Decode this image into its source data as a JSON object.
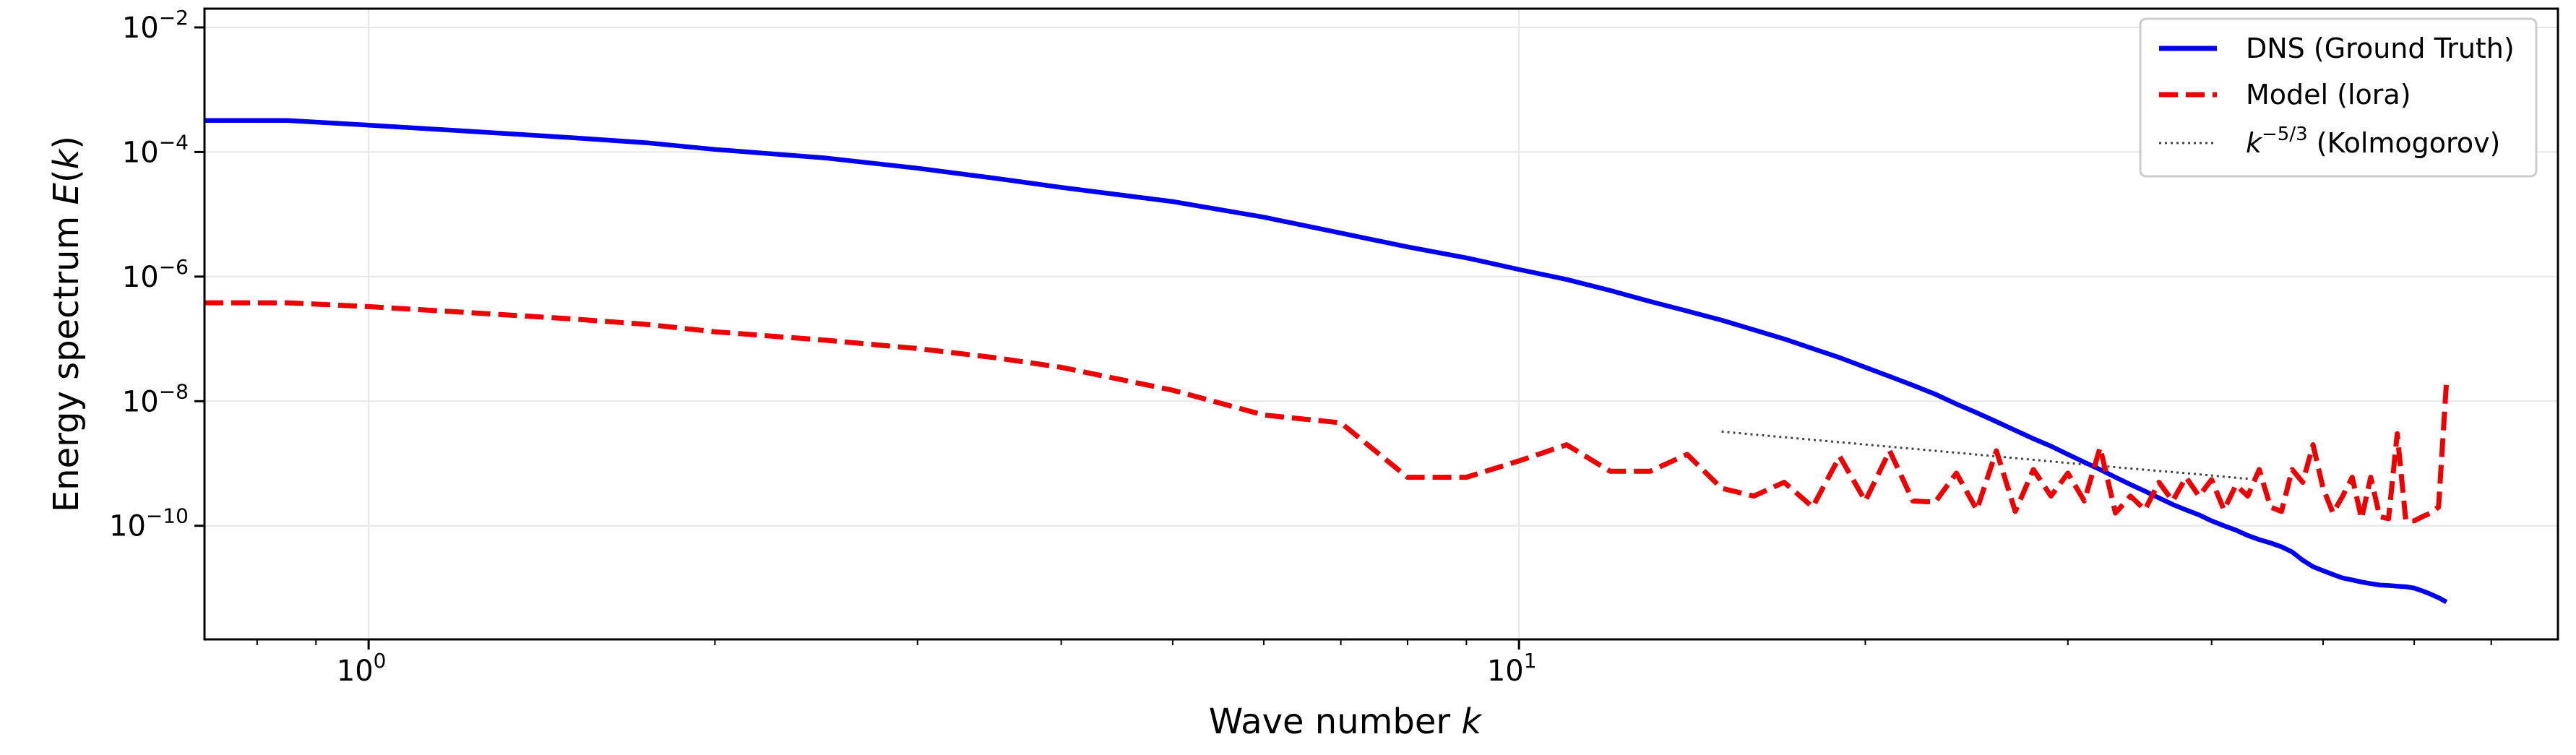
{
  "chart_data": {
    "type": "line",
    "title": "",
    "xlabel": "Wave number k",
    "ylabel": "Energy spectrum E(k)",
    "xscale": "log",
    "yscale": "log",
    "xlim": [
      0.72,
      80
    ],
    "ylim": [
      1.5e-12,
      0.02
    ],
    "grid": true,
    "legend_position": "top-right",
    "x_ticks": [
      {
        "value": 1,
        "label": "10",
        "exp": "0"
      },
      {
        "value": 10,
        "label": "10",
        "exp": "1"
      }
    ],
    "y_ticks": [
      {
        "value": 0.01,
        "label": "10",
        "exp": "−2"
      },
      {
        "value": 0.0001,
        "label": "10",
        "exp": "−4"
      },
      {
        "value": 1e-06,
        "label": "10",
        "exp": "−6"
      },
      {
        "value": 1e-08,
        "label": "10",
        "exp": "−8"
      },
      {
        "value": 1e-10,
        "label": "10",
        "exp": "−10"
      }
    ],
    "series": [
      {
        "name": "DNS (Ground Truth)",
        "color": "#0000ee",
        "style": "solid",
        "x": [
          0.72,
          0.85,
          1.0,
          1.2,
          1.5,
          1.75,
          2.0,
          2.5,
          3.0,
          3.5,
          4.0,
          5.0,
          6.0,
          7.0,
          8.0,
          9.0,
          10.0,
          11.0,
          12.0,
          13.0,
          14.0,
          15.0,
          16.0,
          17.0,
          18.0,
          19.0,
          20.0,
          21.0,
          22.0,
          23.0,
          24.0,
          25.0,
          26.0,
          27.0,
          28.0,
          29.0,
          30.0,
          31.0,
          32.0,
          33.0,
          34.0,
          35.0,
          36.0,
          37.0,
          38.0,
          39.0,
          40.0,
          41.0,
          42.0,
          43.0,
          44.0,
          45.0,
          46.0,
          47.0,
          48.0,
          49.0,
          50.0,
          51.0,
          52.0,
          53.0,
          54.0,
          55.0,
          56.0,
          57.0,
          58.0,
          59.0,
          60.0,
          61.0,
          62.0,
          63.0,
          64.0
        ],
        "y": [
          0.00032,
          0.00032,
          0.00027,
          0.00022,
          0.00017,
          0.00014,
          0.00011,
          8e-05,
          5.5e-05,
          3.8e-05,
          2.7e-05,
          1.6e-05,
          9e-06,
          5e-06,
          3e-06,
          2e-06,
          1.3e-06,
          9e-07,
          6e-07,
          4e-07,
          2.8e-07,
          2e-07,
          1.4e-07,
          1e-07,
          7e-08,
          5e-08,
          3.5e-08,
          2.5e-08,
          1.8e-08,
          1.3e-08,
          9e-09,
          6.5e-09,
          4.7e-09,
          3.4e-09,
          2.5e-09,
          1.9e-09,
          1.4e-09,
          1.05e-09,
          8e-10,
          6e-10,
          4.6e-10,
          3.6e-10,
          2.8e-10,
          2.2e-10,
          1.8e-10,
          1.5e-10,
          1.2e-10,
          1e-10,
          8.5e-11,
          7e-11,
          6e-11,
          5.3e-11,
          4.6e-11,
          3.8e-11,
          2.8e-11,
          2.2e-11,
          1.9e-11,
          1.65e-11,
          1.45e-11,
          1.35e-11,
          1.25e-11,
          1.18e-11,
          1.12e-11,
          1.1e-11,
          1.07e-11,
          1.05e-11,
          1e-11,
          9e-12,
          8e-12,
          7e-12,
          6e-12
        ]
      },
      {
        "name": "Model (lora)",
        "color": "#ee0000",
        "style": "dashed",
        "x": [
          0.72,
          0.85,
          1.0,
          1.2,
          1.5,
          1.75,
          2.0,
          2.5,
          3.0,
          3.5,
          4.0,
          5.0,
          6.0,
          7.0,
          8.0,
          9.0,
          10.0,
          11.0,
          12.0,
          13.0,
          14.0,
          15.0,
          16.0,
          17.0,
          18.0,
          19.0,
          20.0,
          21.0,
          22.0,
          23.0,
          24.0,
          25.0,
          26.0,
          27.0,
          28.0,
          29.0,
          30.0,
          31.0,
          32.0,
          33.0,
          34.0,
          35.0,
          36.0,
          37.0,
          38.0,
          39.0,
          40.0,
          41.0,
          42.0,
          43.0,
          44.0,
          45.0,
          46.0,
          47.0,
          48.0,
          49.0,
          50.0,
          51.0,
          52.0,
          53.0,
          54.0,
          55.0,
          56.0,
          57.0,
          58.0,
          59.0,
          60.0,
          61.0,
          62.0,
          63.0,
          64.0
        ],
        "y": [
          3.8e-07,
          3.8e-07,
          3.3e-07,
          2.7e-07,
          2.1e-07,
          1.7e-07,
          1.3e-07,
          9.5e-08,
          7e-08,
          5e-08,
          3.5e-08,
          1.5e-08,
          6e-09,
          4.5e-09,
          6e-10,
          6e-10,
          1.1e-09,
          2e-09,
          7.5e-10,
          7.5e-10,
          1.4e-09,
          4e-10,
          3e-10,
          5e-10,
          2e-10,
          1.3e-09,
          2.5e-10,
          1.6e-09,
          2.5e-10,
          2.4e-10,
          7e-10,
          1.8e-10,
          1.6e-09,
          1.7e-10,
          8e-10,
          3e-10,
          7e-10,
          2.5e-10,
          1.8e-09,
          1.6e-10,
          3e-10,
          1.8e-10,
          5e-10,
          2.5e-10,
          6e-10,
          3e-10,
          5.5e-10,
          1.8e-10,
          4.5e-10,
          3e-10,
          8e-10,
          2e-10,
          1.7e-10,
          8e-10,
          5e-10,
          2e-09,
          4e-10,
          1.6e-10,
          3e-10,
          6e-10,
          1.3e-10,
          6e-10,
          1.4e-10,
          1.3e-10,
          3e-09,
          1.2e-10,
          1.2e-10,
          1.4e-10,
          1.6e-10,
          2e-10,
          2e-08
        ]
      },
      {
        "name": "k^{-5/3} (Kolmogorov)",
        "color": "#444444",
        "style": "dotted",
        "x": [
          15,
          18,
          21,
          24,
          27,
          30,
          33,
          36,
          39,
          42,
          43
        ],
        "y": [
          3.25e-09,
          2.4e-09,
          1.86e-09,
          1.49e-09,
          1.22e-09,
          1.02e-09,
          8.7e-10,
          7.6e-10,
          6.7e-10,
          5.9e-10,
          5.7e-10
        ]
      }
    ],
    "legend": [
      {
        "text": "DNS (Ground Truth)",
        "color": "#0000ee",
        "style": "solid"
      },
      {
        "text": "Model (lora)",
        "color": "#ee0000",
        "style": "dashed"
      },
      {
        "text_k": "k",
        "text_exp": "−5/3",
        "text_rest": " (Kolmogorov)",
        "color": "#444444",
        "style": "dotted"
      }
    ]
  }
}
